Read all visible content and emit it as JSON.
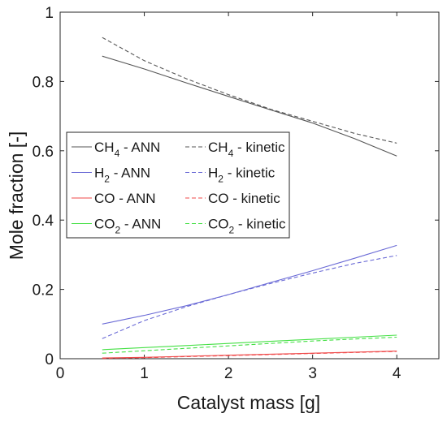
{
  "chart_data": {
    "type": "line",
    "title": "",
    "xlabel": "Catalyst mass [g]",
    "ylabel": "Mole fraction [-]",
    "xlim": [
      0,
      4.5
    ],
    "ylim": [
      0,
      1
    ],
    "xticks": [
      0,
      1,
      2,
      3,
      4
    ],
    "xtick_labels": [
      "0",
      "1",
      "2",
      "3",
      "4"
    ],
    "yticks": [
      0,
      0.2,
      0.4,
      0.6,
      0.8,
      1
    ],
    "ytick_labels": [
      "0",
      "0.2",
      "0.4",
      "0.6",
      "0.8",
      "1"
    ],
    "grid": false,
    "legend_position": "middle-left",
    "x": [
      0.5,
      1.0,
      1.5,
      2.0,
      2.5,
      3.0,
      3.5,
      4.0
    ],
    "series": [
      {
        "name": "CH4 - ANN",
        "label_main": "CH",
        "label_sub": "4",
        "label_rest": " - ANN",
        "color": "#555555",
        "dash": "solid",
        "values": [
          0.873,
          0.836,
          0.796,
          0.757,
          0.718,
          0.68,
          0.635,
          0.585
        ]
      },
      {
        "name": "CH4 - kinetic",
        "label_main": "CH",
        "label_sub": "4",
        "label_rest": " - kinetic",
        "color": "#555555",
        "dash": "dashed",
        "values": [
          0.927,
          0.86,
          0.808,
          0.762,
          0.72,
          0.685,
          0.65,
          0.622
        ]
      },
      {
        "name": "H2 - ANN",
        "label_main": "H",
        "label_sub": "2",
        "label_rest": " - ANN",
        "color": "#6a6ad6",
        "dash": "solid",
        "values": [
          0.1,
          0.125,
          0.153,
          0.185,
          0.22,
          0.254,
          0.29,
          0.327
        ]
      },
      {
        "name": "H2 - kinetic",
        "label_main": "H",
        "label_sub": "2",
        "label_rest": " - kinetic",
        "color": "#6a6ad6",
        "dash": "dashed",
        "values": [
          0.058,
          0.11,
          0.15,
          0.185,
          0.217,
          0.247,
          0.275,
          0.298
        ]
      },
      {
        "name": "CO - ANN",
        "label_main": "CO",
        "label_sub": "",
        "label_rest": " - ANN",
        "color": "#ef4a4a",
        "dash": "solid",
        "values": [
          0.002,
          0.004,
          0.007,
          0.01,
          0.013,
          0.016,
          0.019,
          0.022
        ]
      },
      {
        "name": "CO - kinetic",
        "label_main": "CO",
        "label_sub": "",
        "label_rest": " - kinetic",
        "color": "#ef4a4a",
        "dash": "dashed",
        "values": [
          0.001,
          0.003,
          0.006,
          0.009,
          0.012,
          0.015,
          0.018,
          0.021
        ]
      },
      {
        "name": "CO2 - ANN",
        "label_main": "CO",
        "label_sub": "2",
        "label_rest": " - ANN",
        "color": "#44e044",
        "dash": "solid",
        "values": [
          0.026,
          0.032,
          0.038,
          0.044,
          0.05,
          0.056,
          0.062,
          0.068
        ]
      },
      {
        "name": "CO2 - kinetic",
        "label_main": "CO",
        "label_sub": "2",
        "label_rest": " - kinetic",
        "color": "#44e044",
        "dash": "dashed",
        "values": [
          0.016,
          0.023,
          0.03,
          0.037,
          0.044,
          0.051,
          0.057,
          0.062
        ]
      }
    ]
  }
}
